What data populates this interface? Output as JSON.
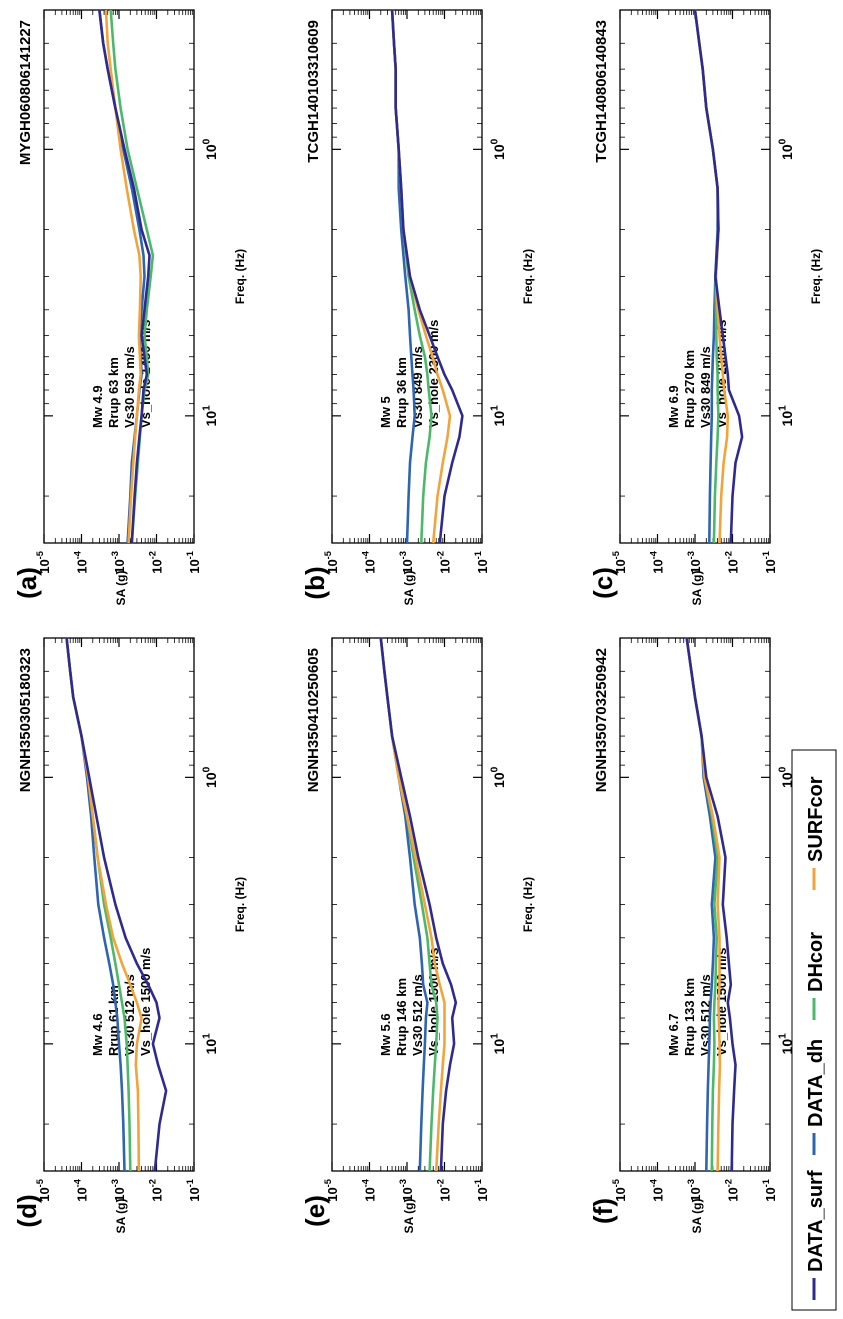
{
  "colors": {
    "DATA_surf": "#2e2a8f",
    "DATA_dh": "#2f64b0",
    "DHcor": "#4cb86a",
    "SURFcor": "#f2a43a",
    "axis": "#000000"
  },
  "legend": {
    "items": [
      "DATA_surf",
      "DATA_dh",
      "DHcor",
      "SURFcor"
    ]
  },
  "chart_data": [
    {
      "id": "a",
      "panel_label": "(a)",
      "title": "MYGH060806141227",
      "type": "line",
      "xscale": "log",
      "yscale": "log",
      "xlabel": "Freq. (Hz)",
      "ylabel": "SA (g)",
      "xlim": [
        0.3,
        30
      ],
      "ylim": [
        1e-05,
        0.1
      ],
      "x_ticks": [
        "10^0",
        "10^1"
      ],
      "y_ticks": [
        "10^-1",
        "10^-2",
        "10^-3",
        "10^-4",
        "10^-5"
      ],
      "annotation": [
        "Mw 4.9",
        "Rrup 63 km",
        "Vs30 593 m/s",
        "Vs_hole 1480 m/s"
      ],
      "x": [
        0.3,
        0.4,
        0.5,
        0.7,
        1.0,
        1.4,
        2.0,
        2.5,
        3.0,
        4.0,
        5.0,
        6.0,
        7.0,
        8.0,
        10.0,
        12.0,
        15.0,
        20.0,
        30.0
      ],
      "series": [
        {
          "name": "DATA_surf",
          "values": [
            0.0003,
            0.00038,
            0.0005,
            0.0008,
            0.0014,
            0.0025,
            0.004,
            0.0065,
            0.006,
            0.0048,
            0.004,
            0.0048,
            0.0055,
            0.0045,
            0.004,
            0.0035,
            0.003,
            0.0026,
            0.0022
          ]
        },
        {
          "name": "DATA_dh",
          "values": [
            0.0003,
            0.00038,
            0.0005,
            0.0008,
            0.0013,
            0.0022,
            0.0035,
            0.0045,
            0.0048,
            0.004,
            0.0035,
            0.0038,
            0.004,
            0.0035,
            0.003,
            0.0026,
            0.0022,
            0.002,
            0.0017
          ]
        },
        {
          "name": "DHcor",
          "values": [
            0.0006,
            0.0007,
            0.0008,
            0.0011,
            0.0017,
            0.003,
            0.0055,
            0.008,
            0.007,
            0.0055,
            0.0048,
            0.0055,
            0.006,
            0.0048,
            0.004,
            0.0036,
            0.0032,
            0.0027,
            0.0022
          ]
        },
        {
          "name": "SURFcor",
          "values": [
            0.00045,
            0.0005,
            0.0006,
            0.0008,
            0.0011,
            0.0016,
            0.0025,
            0.0035,
            0.0038,
            0.0036,
            0.0034,
            0.0036,
            0.0038,
            0.0034,
            0.003,
            0.0027,
            0.0024,
            0.0021,
            0.0018
          ]
        }
      ]
    },
    {
      "id": "b",
      "panel_label": "(b)",
      "title": "TCGH14010331 0609",
      "type": "line",
      "xscale": "log",
      "yscale": "log",
      "xlabel": "Freq. (Hz)",
      "ylabel": "SA (g)",
      "xlim": [
        0.3,
        30
      ],
      "ylim": [
        1e-05,
        0.1
      ],
      "x_ticks": [
        "10^0",
        "10^1"
      ],
      "y_ticks": [
        "10^-1",
        "10^-2",
        "10^-3",
        "10^-4",
        "10^-5"
      ],
      "annotation": [
        "Mw 5",
        "Rrup 36 km",
        "Vs30 849 m/s",
        "Vs_hole 2300 m/s"
      ],
      "x": [
        0.3,
        0.4,
        0.5,
        0.7,
        1.0,
        1.4,
        2.0,
        3.0,
        4.0,
        5.0,
        6.0,
        7.0,
        8.0,
        10.0,
        12.0,
        15.0,
        20.0,
        30.0
      ],
      "series": [
        {
          "name": "DATA_surf",
          "values": [
            0.0004,
            0.00045,
            0.0005,
            0.0005,
            0.0006,
            0.0007,
            0.0008,
            0.0012,
            0.0022,
            0.004,
            0.0065,
            0.01,
            0.016,
            0.03,
            0.025,
            0.016,
            0.01,
            0.0075
          ]
        },
        {
          "name": "DATA_dh",
          "values": [
            0.0004,
            0.00045,
            0.0005,
            0.0005,
            0.0006,
            0.0006,
            0.0007,
            0.0009,
            0.0011,
            0.0012,
            0.0013,
            0.0014,
            0.0015,
            0.0016,
            0.0014,
            0.0012,
            0.0011,
            0.001
          ]
        },
        {
          "name": "DHcor",
          "values": [
            0.0004,
            0.00045,
            0.0005,
            0.0005,
            0.0006,
            0.0007,
            0.0008,
            0.0011,
            0.0016,
            0.0022,
            0.003,
            0.0035,
            0.0038,
            0.0045,
            0.004,
            0.0032,
            0.0027,
            0.0024
          ]
        },
        {
          "name": "SURFcor",
          "values": [
            0.0004,
            0.00045,
            0.0005,
            0.0005,
            0.0006,
            0.0007,
            0.0008,
            0.0012,
            0.002,
            0.0032,
            0.0048,
            0.0065,
            0.009,
            0.014,
            0.012,
            0.009,
            0.0065,
            0.005
          ]
        }
      ]
    },
    {
      "id": "c",
      "panel_label": "(c)",
      "title": "TCGH140806140843",
      "type": "line",
      "xscale": "log",
      "yscale": "log",
      "xlabel": "Freq. (Hz)",
      "ylabel": "SA (g)",
      "xlim": [
        0.3,
        30
      ],
      "ylim": [
        1e-05,
        0.1
      ],
      "x_ticks": [
        "10^0",
        "10^1"
      ],
      "y_ticks": [
        "10^-1",
        "10^-2",
        "10^-3",
        "10^-4",
        "10^-5"
      ],
      "annotation": [
        "Mw 6.9",
        "Rrup 270 km",
        "Vs30 849 m/s",
        "Vs_hole 2300 m/s"
      ],
      "x": [
        0.3,
        0.4,
        0.5,
        0.7,
        1.0,
        1.4,
        2.0,
        3.0,
        4.0,
        5.0,
        6.0,
        7.0,
        8.0,
        10.0,
        12.0,
        15.0,
        20.0,
        30.0
      ],
      "series": [
        {
          "name": "DATA_surf",
          "values": [
            0.001,
            0.0013,
            0.0016,
            0.002,
            0.003,
            0.004,
            0.0042,
            0.0035,
            0.0045,
            0.0055,
            0.0065,
            0.0075,
            0.008,
            0.015,
            0.018,
            0.012,
            0.01,
            0.009
          ]
        },
        {
          "name": "DATA_dh",
          "values": [
            0.001,
            0.0013,
            0.0016,
            0.002,
            0.003,
            0.004,
            0.004,
            0.0035,
            0.0033,
            0.0032,
            0.003,
            0.0029,
            0.0028,
            0.0028,
            0.0027,
            0.0026,
            0.0025,
            0.0024
          ]
        },
        {
          "name": "DHcor",
          "values": [
            0.001,
            0.0013,
            0.0016,
            0.002,
            0.003,
            0.004,
            0.0042,
            0.0036,
            0.0036,
            0.0037,
            0.0038,
            0.004,
            0.004,
            0.0042,
            0.004,
            0.0037,
            0.0034,
            0.0032
          ]
        },
        {
          "name": "SURFcor",
          "values": [
            0.001,
            0.0013,
            0.0016,
            0.002,
            0.003,
            0.004,
            0.0042,
            0.0036,
            0.004,
            0.0045,
            0.005,
            0.0055,
            0.006,
            0.0075,
            0.0072,
            0.0058,
            0.005,
            0.0045
          ]
        }
      ]
    },
    {
      "id": "d",
      "panel_label": "(d)",
      "title": "NGNH350305180323",
      "type": "line",
      "xscale": "log",
      "yscale": "log",
      "xlabel": "Freq. (Hz)",
      "ylabel": "SA (g)",
      "xlim": [
        0.3,
        30
      ],
      "ylim": [
        1e-05,
        0.1
      ],
      "x_ticks": [
        "10^0",
        "10^1"
      ],
      "y_ticks": [
        "10^-1",
        "10^-2",
        "10^-3",
        "10^-4",
        "10^-5"
      ],
      "annotation": [
        "Mw 4.6",
        "Rrup 61 km",
        "Vs30 512 m/s",
        "Vs_hole 1500 m/s"
      ],
      "x": [
        0.3,
        0.4,
        0.5,
        0.7,
        1.0,
        1.4,
        2.0,
        3.0,
        4.0,
        5.0,
        6.0,
        7.0,
        8.0,
        10.0,
        12.0,
        15.0,
        20.0,
        30.0
      ],
      "series": [
        {
          "name": "DATA_surf",
          "values": [
            4e-05,
            5e-05,
            6e-05,
            0.0001,
            0.00016,
            0.00025,
            0.0004,
            0.0008,
            0.0015,
            0.003,
            0.006,
            0.01,
            0.012,
            0.008,
            0.011,
            0.018,
            0.012,
            0.009
          ]
        },
        {
          "name": "DATA_dh",
          "values": [
            4e-05,
            5e-05,
            6e-05,
            0.0001,
            0.00014,
            0.00018,
            0.00022,
            0.00028,
            0.0004,
            0.00055,
            0.0007,
            0.0008,
            0.0009,
            0.001,
            0.0011,
            0.0012,
            0.0013,
            0.0014
          ]
        },
        {
          "name": "DHcor",
          "values": [
            4e-05,
            5e-05,
            6e-05,
            0.0001,
            0.00015,
            0.0002,
            0.00027,
            0.0004,
            0.0006,
            0.0008,
            0.001,
            0.0012,
            0.0014,
            0.0016,
            0.0017,
            0.0018,
            0.0019,
            0.002
          ]
        },
        {
          "name": "SURFcor",
          "values": [
            4e-05,
            5e-05,
            6e-05,
            0.0001,
            0.00015,
            0.0002,
            0.00027,
            0.00045,
            0.0007,
            0.0012,
            0.002,
            0.003,
            0.004,
            0.003,
            0.0028,
            0.0032,
            0.0033,
            0.0034
          ]
        }
      ]
    },
    {
      "id": "e",
      "panel_label": "(e)",
      "title": "NGNH350410250605",
      "type": "line",
      "xscale": "log",
      "yscale": "log",
      "xlabel": "Freq. (Hz)",
      "ylabel": "SA (g)",
      "xlim": [
        0.3,
        30
      ],
      "ylim": [
        1e-05,
        0.1
      ],
      "x_ticks": [
        "10^0",
        "10^1"
      ],
      "y_ticks": [
        "10^-1",
        "10^-2",
        "10^-3",
        "10^-4",
        "10^-5"
      ],
      "annotation": [
        "Mw 5.6",
        "Rrup 146 km",
        "Vs30 512 m/s",
        "Vs_hole 1500 m/s"
      ],
      "x": [
        0.3,
        0.4,
        0.5,
        0.7,
        1.0,
        1.4,
        2.0,
        3.0,
        4.0,
        5.0,
        6.0,
        7.0,
        8.0,
        10.0,
        12.0,
        15.0,
        20.0,
        30.0
      ],
      "series": [
        {
          "name": "DATA_surf",
          "values": [
            0.0002,
            0.00025,
            0.0003,
            0.0004,
            0.0007,
            0.0012,
            0.002,
            0.004,
            0.006,
            0.009,
            0.015,
            0.02,
            0.016,
            0.018,
            0.014,
            0.011,
            0.009,
            0.008
          ]
        },
        {
          "name": "DATA_dh",
          "values": [
            0.0002,
            0.00025,
            0.0003,
            0.0004,
            0.0006,
            0.0009,
            0.0012,
            0.0016,
            0.0022,
            0.0025,
            0.0027,
            0.0035,
            0.0032,
            0.003,
            0.0028,
            0.0026,
            0.0024,
            0.0022
          ]
        },
        {
          "name": "DHcor",
          "values": [
            0.0002,
            0.00025,
            0.0003,
            0.0004,
            0.0006,
            0.001,
            0.0015,
            0.0025,
            0.0035,
            0.004,
            0.0045,
            0.006,
            0.0065,
            0.006,
            0.0055,
            0.005,
            0.0045,
            0.004
          ]
        },
        {
          "name": "SURFcor",
          "values": [
            0.0002,
            0.00025,
            0.0003,
            0.0004,
            0.0006,
            0.001,
            0.0017,
            0.003,
            0.0045,
            0.0055,
            0.0075,
            0.01,
            0.01,
            0.01,
            0.009,
            0.008,
            0.007,
            0.006
          ]
        }
      ]
    },
    {
      "id": "f",
      "panel_label": "(f)",
      "title": "NGNH350703250942",
      "type": "line",
      "xscale": "log",
      "yscale": "log",
      "xlabel": "Freq. (Hz)",
      "ylabel": "SA (g)",
      "xlim": [
        0.3,
        30
      ],
      "ylim": [
        1e-05,
        0.1
      ],
      "x_ticks": [
        "10^0",
        "10^1"
      ],
      "y_ticks": [
        "10^-1",
        "10^-2",
        "10^-3",
        "10^-4",
        "10^-5"
      ],
      "annotation": [
        "Mw 6.7",
        "Rrup 133 km",
        "Vs30 512 m/s",
        "Vs_hole 1500 m/s"
      ],
      "x": [
        0.3,
        0.4,
        0.5,
        0.7,
        1.0,
        1.4,
        2.0,
        3.0,
        4.0,
        5.0,
        6.0,
        7.0,
        8.0,
        10.0,
        12.0,
        15.0,
        20.0,
        30.0
      ],
      "series": [
        {
          "name": "DATA_surf",
          "values": [
            0.0006,
            0.0008,
            0.001,
            0.0015,
            0.002,
            0.004,
            0.0065,
            0.0055,
            0.007,
            0.008,
            0.009,
            0.0075,
            0.0085,
            0.01,
            0.012,
            0.011,
            0.01,
            0.0095
          ]
        },
        {
          "name": "DATA_dh",
          "values": [
            0.0006,
            0.0008,
            0.001,
            0.0015,
            0.0017,
            0.0025,
            0.0035,
            0.0028,
            0.0032,
            0.003,
            0.0028,
            0.0026,
            0.0025,
            0.0024,
            0.0023,
            0.0022,
            0.0021,
            0.002
          ]
        },
        {
          "name": "DHcor",
          "values": [
            0.0006,
            0.0008,
            0.001,
            0.0015,
            0.0018,
            0.0028,
            0.004,
            0.0033,
            0.0038,
            0.0036,
            0.0035,
            0.0033,
            0.0032,
            0.0033,
            0.0032,
            0.003,
            0.0029,
            0.0028
          ]
        },
        {
          "name": "SURFcor",
          "values": [
            0.0006,
            0.0008,
            0.001,
            0.0015,
            0.0018,
            0.003,
            0.0045,
            0.004,
            0.0045,
            0.0045,
            0.0045,
            0.0042,
            0.0043,
            0.0045,
            0.0046,
            0.0044,
            0.0042,
            0.004
          ]
        }
      ]
    }
  ]
}
